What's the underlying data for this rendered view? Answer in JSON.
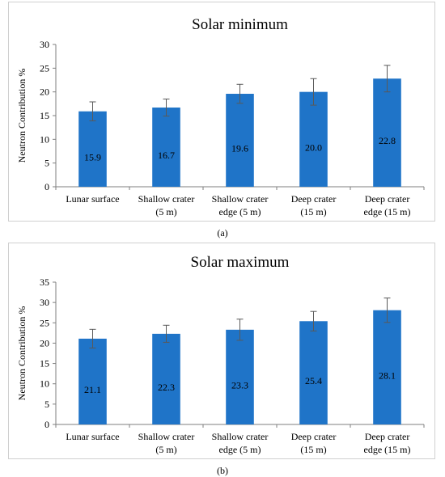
{
  "chart_data": [
    {
      "type": "bar",
      "title": "Solar minimum",
      "ylabel": "Neutron Contribution %",
      "xlabel": "",
      "ylim": [
        0,
        30
      ],
      "yticks": [
        0,
        5,
        10,
        15,
        20,
        25,
        30
      ],
      "categories": [
        [
          "Lunar surface"
        ],
        [
          "Shallow crater",
          "(5 m)"
        ],
        [
          "Shallow crater",
          "edge (5 m)"
        ],
        [
          "Deep crater",
          "(15 m)"
        ],
        [
          "Deep crater",
          "edge (15 m)"
        ]
      ],
      "values": [
        15.9,
        16.7,
        19.6,
        20.0,
        22.8
      ],
      "value_labels": [
        "15.9",
        "16.7",
        "19.6",
        "20.0",
        "22.8"
      ],
      "error": [
        2.0,
        1.8,
        2.0,
        2.8,
        2.8
      ],
      "bar_color": "#1f74c8",
      "grid": false,
      "caption": "(a)"
    },
    {
      "type": "bar",
      "title": "Solar maximum",
      "ylabel": "Neutron Contribution %",
      "xlabel": "",
      "ylim": [
        0,
        35
      ],
      "yticks": [
        0,
        5,
        10,
        15,
        20,
        25,
        30,
        35
      ],
      "categories": [
        [
          "Lunar surface"
        ],
        [
          "Shallow crater",
          "(5 m)"
        ],
        [
          "Shallow crater",
          "edge (5 m)"
        ],
        [
          "Deep crater",
          "(15 m)"
        ],
        [
          "Deep crater",
          "edge (15 m)"
        ]
      ],
      "values": [
        21.1,
        22.3,
        23.3,
        25.4,
        28.1
      ],
      "value_labels": [
        "21.1",
        "22.3",
        "23.3",
        "25.4",
        "28.1"
      ],
      "error": [
        2.3,
        2.1,
        2.6,
        2.4,
        3.0
      ],
      "bar_color": "#1f74c8",
      "grid": false,
      "caption": "(b)"
    }
  ]
}
